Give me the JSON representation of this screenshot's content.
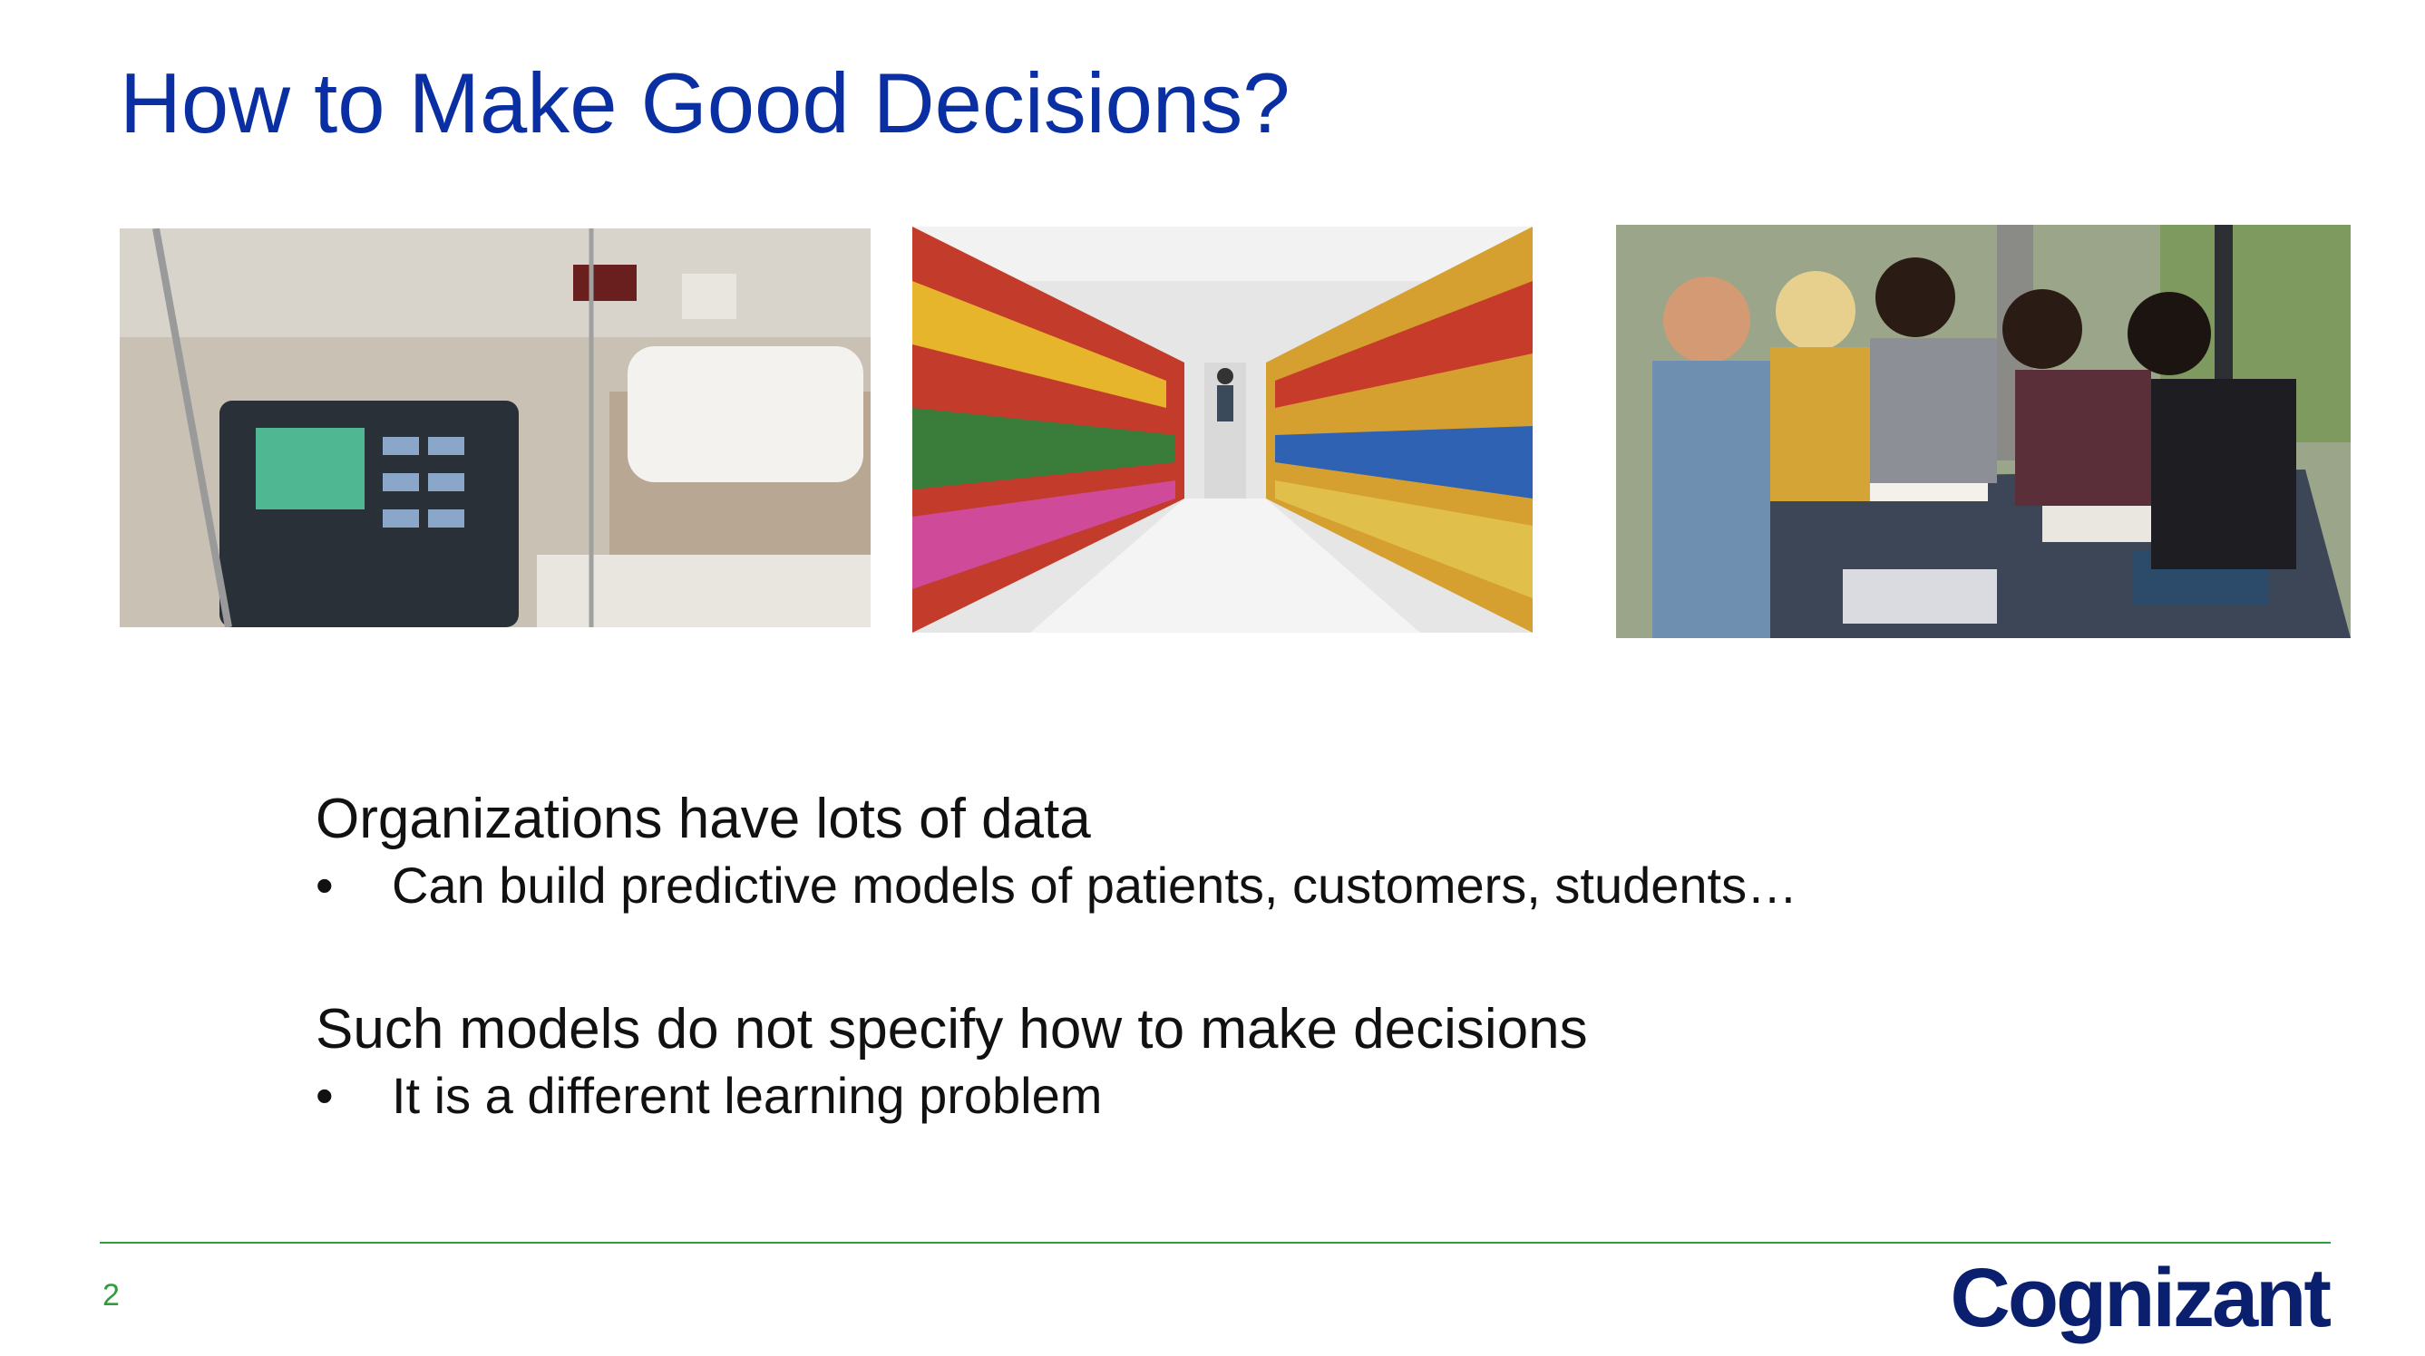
{
  "slide": {
    "title": "How to Make Good Decisions?",
    "page_number": "2",
    "logo_text": "Cognizant"
  },
  "images": [
    {
      "subject": "hospital room with monitor and bed"
    },
    {
      "subject": "supermarket aisle"
    },
    {
      "subject": "students studying at a table"
    }
  ],
  "points": [
    {
      "heading": "Organizations have lots of data",
      "bullet": "Can build predictive models of patients, customers, students…"
    },
    {
      "heading": "Such models do not specify how to make decisions",
      "bullet": "It is a different learning problem"
    }
  ],
  "colors": {
    "title": "#0a2fa3",
    "accent": "#2e9d3a",
    "logo": "#0a1f6e"
  }
}
